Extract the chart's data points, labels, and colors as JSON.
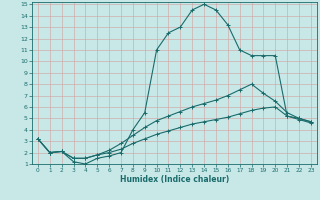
{
  "xlabel": "Humidex (Indice chaleur)",
  "background_color": "#c8e8e8",
  "line_color": "#1a6b6b",
  "xlim": [
    -0.5,
    23.5
  ],
  "ylim": [
    1,
    15.2
  ],
  "xticks": [
    0,
    1,
    2,
    3,
    4,
    5,
    6,
    7,
    8,
    9,
    10,
    11,
    12,
    13,
    14,
    15,
    16,
    17,
    18,
    19,
    20,
    21,
    22,
    23
  ],
  "yticks": [
    1,
    2,
    3,
    4,
    5,
    6,
    7,
    8,
    9,
    10,
    11,
    12,
    13,
    14,
    15
  ],
  "line1_x": [
    0,
    1,
    2,
    3,
    4,
    5,
    6,
    7,
    8,
    9,
    10,
    11,
    12,
    13,
    14,
    15,
    16,
    17,
    18,
    19,
    20,
    21,
    22,
    23
  ],
  "line1_y": [
    3.2,
    2.0,
    2.1,
    1.2,
    1.0,
    1.5,
    1.7,
    2.0,
    4.0,
    5.5,
    11.0,
    12.5,
    13.0,
    14.5,
    15.0,
    14.5,
    13.2,
    11.0,
    10.5,
    10.5,
    10.5,
    5.2,
    5.0,
    4.7
  ],
  "line2_x": [
    0,
    1,
    2,
    3,
    4,
    5,
    6,
    7,
    8,
    9,
    10,
    11,
    12,
    13,
    14,
    15,
    16,
    17,
    18,
    19,
    20,
    21,
    22,
    23
  ],
  "line2_y": [
    3.2,
    2.0,
    2.1,
    1.5,
    1.5,
    1.8,
    2.2,
    2.8,
    3.5,
    4.2,
    4.8,
    5.2,
    5.6,
    6.0,
    6.3,
    6.6,
    7.0,
    7.5,
    8.0,
    7.2,
    6.5,
    5.5,
    5.0,
    4.7
  ],
  "line3_x": [
    0,
    1,
    2,
    3,
    4,
    5,
    6,
    7,
    8,
    9,
    10,
    11,
    12,
    13,
    14,
    15,
    16,
    17,
    18,
    19,
    20,
    21,
    22,
    23
  ],
  "line3_y": [
    3.2,
    2.0,
    2.1,
    1.5,
    1.5,
    1.8,
    2.0,
    2.3,
    2.8,
    3.2,
    3.6,
    3.9,
    4.2,
    4.5,
    4.7,
    4.9,
    5.1,
    5.4,
    5.7,
    5.9,
    6.0,
    5.2,
    4.9,
    4.6
  ]
}
